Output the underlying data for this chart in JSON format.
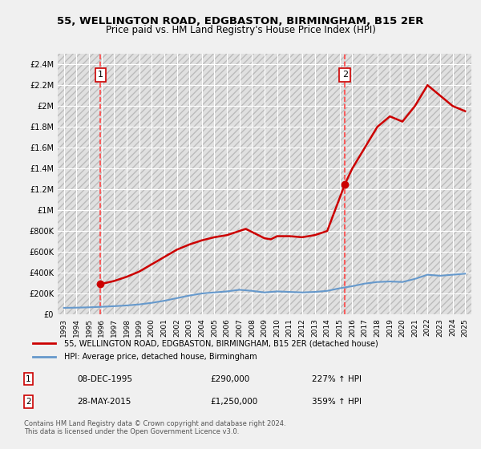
{
  "title": "55, WELLINGTON ROAD, EDGBASTON, BIRMINGHAM, B15 2ER",
  "subtitle": "Price paid vs. HM Land Registry's House Price Index (HPI)",
  "background_color": "#f0f0f0",
  "plot_bg_color": "#e8e8e8",
  "grid_color": "#ffffff",
  "hatch_color": "#cccccc",
  "ylim": [
    0,
    2500000
  ],
  "yticks": [
    0,
    200000,
    400000,
    600000,
    800000,
    1000000,
    1200000,
    1400000,
    1600000,
    1800000,
    2000000,
    2200000,
    2400000
  ],
  "ytick_labels": [
    "£0",
    "£200K",
    "£400K",
    "£600K",
    "£800K",
    "£1M",
    "£1.2M",
    "£1.4M",
    "£1.6M",
    "£1.8M",
    "£2M",
    "£2.2M",
    "£2.4M"
  ],
  "xlim_start": 1992.5,
  "xlim_end": 2025.5,
  "xticks": [
    1993,
    1994,
    1995,
    1996,
    1997,
    1998,
    1999,
    2000,
    2001,
    2002,
    2003,
    2004,
    2005,
    2006,
    2007,
    2008,
    2009,
    2010,
    2011,
    2012,
    2013,
    2014,
    2015,
    2016,
    2017,
    2018,
    2019,
    2020,
    2021,
    2022,
    2023,
    2024,
    2025
  ],
  "sale1_x": 1995.92,
  "sale1_y": 290000,
  "sale1_label": "1",
  "sale1_date": "08-DEC-1995",
  "sale1_price": "£290,000",
  "sale1_hpi": "227% ↑ HPI",
  "sale2_x": 2015.41,
  "sale2_y": 1250000,
  "sale2_label": "2",
  "sale2_date": "28-MAY-2015",
  "sale2_price": "£1,250,000",
  "sale2_hpi": "359% ↑ HPI",
  "line_color": "#cc0000",
  "hpi_color": "#6699cc",
  "vline_color": "#ff4444",
  "dot_color": "#cc0000",
  "legend_label1": "55, WELLINGTON ROAD, EDGBASTON, BIRMINGHAM, B15 2ER (detached house)",
  "legend_label2": "HPI: Average price, detached house, Birmingham",
  "footnote": "Contains HM Land Registry data © Crown copyright and database right 2024.\nThis data is licensed under the Open Government Licence v3.0.",
  "hpi_data_x": [
    1993,
    1994,
    1995,
    1996,
    1997,
    1998,
    1999,
    2000,
    2001,
    2002,
    2003,
    2004,
    2005,
    2006,
    2007,
    2008,
    2009,
    2010,
    2011,
    2012,
    2013,
    2014,
    2015,
    2016,
    2017,
    2018,
    2019,
    2020,
    2021,
    2022,
    2023,
    2024,
    2025
  ],
  "hpi_data_y": [
    62000,
    64000,
    67000,
    72000,
    78000,
    85000,
    95000,
    110000,
    130000,
    155000,
    180000,
    200000,
    210000,
    220000,
    235000,
    225000,
    210000,
    220000,
    215000,
    210000,
    215000,
    225000,
    250000,
    270000,
    295000,
    310000,
    315000,
    310000,
    340000,
    380000,
    370000,
    380000,
    390000
  ],
  "price_line_x": [
    1995.92,
    1997,
    1998,
    1999,
    2000,
    2001,
    2002,
    2003,
    2004,
    2005,
    2006,
    2007,
    2007.5,
    2008,
    2008.5,
    2009,
    2009.5,
    2010,
    2011,
    2012,
    2013,
    2014,
    2015.41,
    2016,
    2017,
    2018,
    2019,
    2020,
    2021,
    2022,
    2023,
    2023.5,
    2024,
    2025
  ],
  "price_line_y": [
    290000,
    320000,
    360000,
    410000,
    480000,
    550000,
    620000,
    670000,
    710000,
    740000,
    760000,
    800000,
    820000,
    790000,
    760000,
    730000,
    720000,
    750000,
    750000,
    740000,
    760000,
    800000,
    1250000,
    1400000,
    1600000,
    1800000,
    1900000,
    1850000,
    2000000,
    2200000,
    2100000,
    2050000,
    2000000,
    1950000
  ]
}
